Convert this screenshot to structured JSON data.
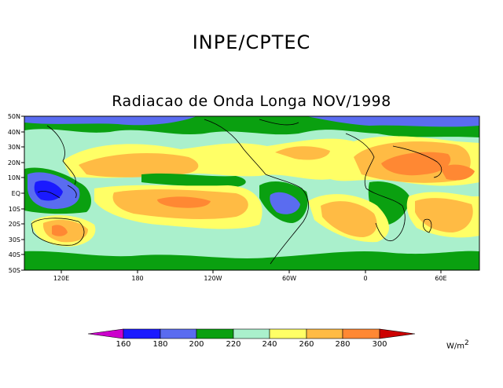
{
  "org": "INPE/CPTEC",
  "title": "Radiacao de Onda Longa NOV/1998",
  "y_ticks": [
    "50N",
    "40N",
    "30N",
    "20N",
    "10N",
    "EQ",
    "10S",
    "20S",
    "30S",
    "40S",
    "50S"
  ],
  "x_ticks": [
    "120E",
    "180",
    "120W",
    "60W",
    "0",
    "60E"
  ],
  "colorbar": {
    "levels": [
      "160",
      "180",
      "200",
      "220",
      "240",
      "260",
      "280",
      "300"
    ],
    "colors": [
      "#cc00cc",
      "#1a1aff",
      "#5a6cf0",
      "#0aa010",
      "#aaf0cc",
      "#ffff66",
      "#ffbb44",
      "#ff8833",
      "#cc0000"
    ],
    "units": "W/m",
    "units_exp": "2"
  },
  "map_colors": {
    "green": "#0aa010",
    "light": "#aaf0cc",
    "yellow": "#ffff66",
    "orange": "#ffbb44",
    "dark_orange": "#ff8833",
    "blue": "#5a6cf0",
    "deep_blue": "#1a1aff",
    "coast": "#000000"
  }
}
